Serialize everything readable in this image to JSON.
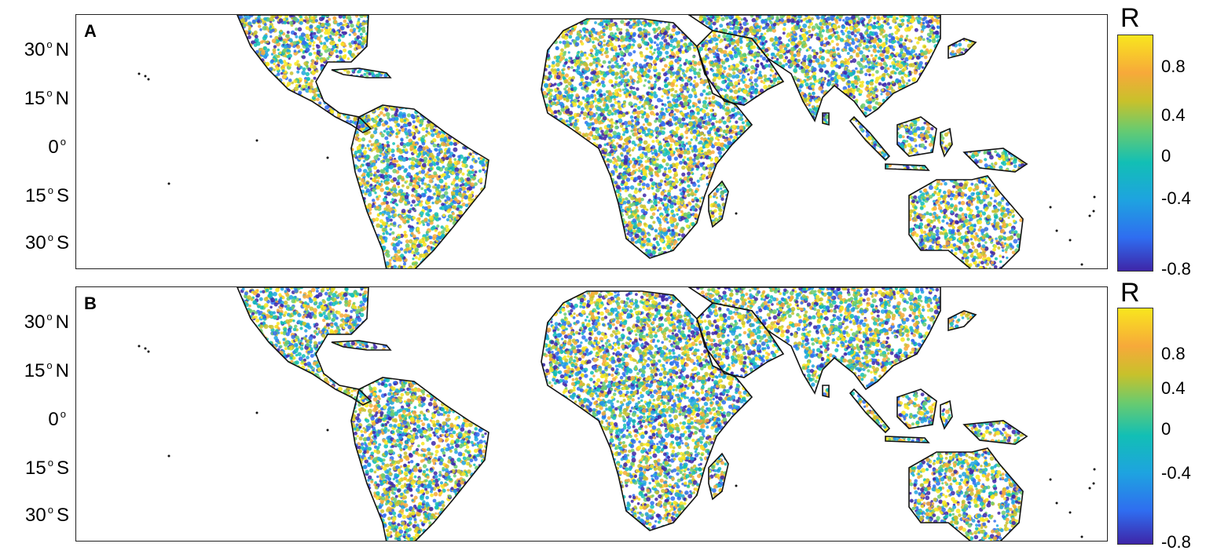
{
  "panels": [
    {
      "id": "A",
      "label": "A",
      "colorbar_title": "R",
      "dot_seed": 17
    },
    {
      "id": "B",
      "label": "B",
      "colorbar_title": "R",
      "dot_seed": 91
    }
  ],
  "latitude_labels": [
    {
      "value": "30",
      "hemi": "N"
    },
    {
      "value": "15",
      "hemi": "N"
    },
    {
      "value": "0",
      "hemi": ""
    },
    {
      "value": "15",
      "hemi": "S"
    },
    {
      "value": "30",
      "hemi": "S"
    }
  ],
  "colorbar": {
    "ticks": [
      "0.8",
      "0.4",
      "0",
      "-0.4",
      "-0.8"
    ],
    "colors": [
      "#3e26a8",
      "#2f6df0",
      "#1ea3e0",
      "#12bfb5",
      "#6acb6e",
      "#c8c12b",
      "#f7a93a",
      "#f8e61e"
    ]
  },
  "colors": {
    "frame": "#222222",
    "coastline": "#111111",
    "background": "#ffffff"
  }
}
